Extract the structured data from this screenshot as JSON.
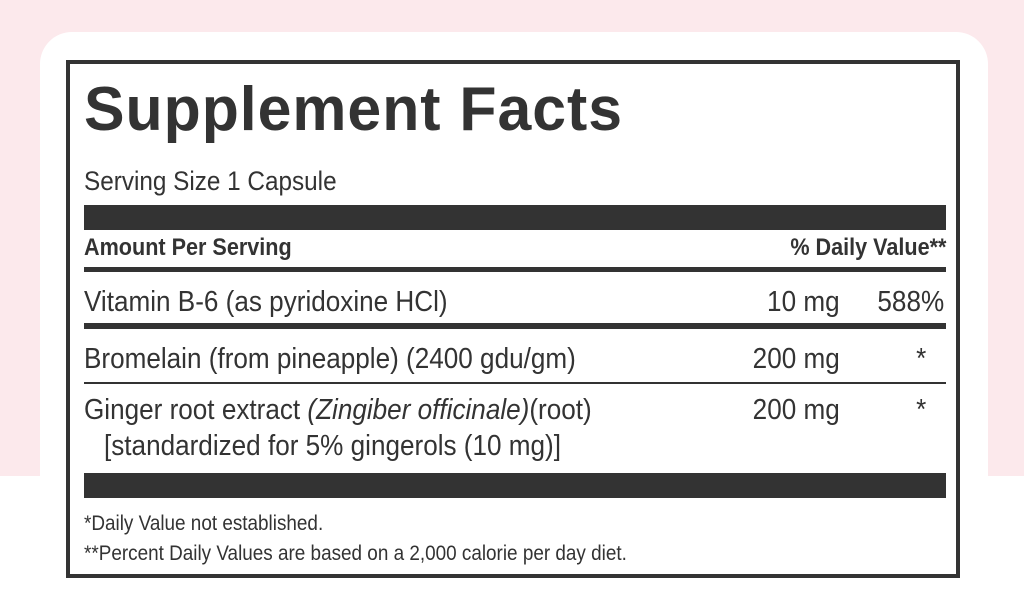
{
  "title": "Supplement Facts",
  "serving_size": "Serving Size 1 Capsule",
  "header": {
    "amount": "Amount Per Serving",
    "dv": "% Daily Value**"
  },
  "rows": [
    {
      "name": "Vitamin B-6 (as pyridoxine HCl)",
      "amount": "10 mg",
      "dv": "588%"
    },
    {
      "name": "Bromelain (from pineapple) (2400 gdu/gm)",
      "amount": "200 mg",
      "dv": "*"
    },
    {
      "name_prefix": "Ginger root extract ",
      "name_italic": "(Zingiber officinale)",
      "name_suffix": "(root)",
      "name_line2": "[standardized for 5% gingerols (10 mg)]",
      "amount": "200 mg",
      "dv": "*"
    }
  ],
  "footnotes": [
    "*Daily Value not established.",
    "**Percent Daily Values are based on a 2,000 calorie per day diet."
  ],
  "colors": {
    "background": "#fce9ec",
    "ink": "#333333"
  }
}
